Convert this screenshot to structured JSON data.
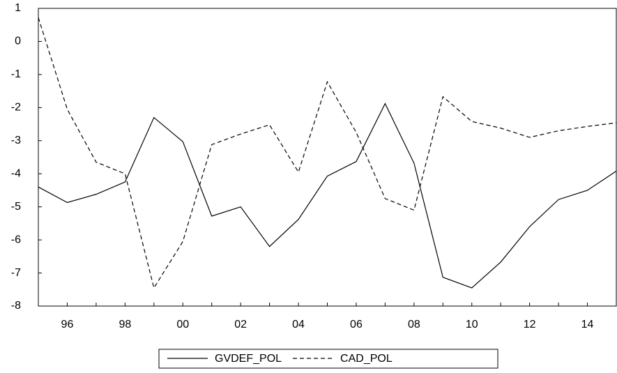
{
  "chart_data": {
    "type": "line",
    "categories": [
      null,
      "96",
      null,
      "98",
      null,
      "00",
      null,
      "02",
      null,
      "04",
      null,
      "06",
      null,
      "08",
      null,
      "10",
      null,
      "12",
      null,
      "14",
      null
    ],
    "series": [
      {
        "name": "GVDEF_POL",
        "color": "#000000",
        "style": "solid",
        "values": [
          -4.4,
          -4.87,
          -4.62,
          -4.25,
          -2.3,
          -3.03,
          -5.28,
          -5.0,
          -6.2,
          -5.38,
          -4.07,
          -3.63,
          -1.88,
          -3.68,
          -7.13,
          -7.45,
          -6.67,
          -5.6,
          -4.78,
          -4.5,
          -3.92
        ]
      },
      {
        "name": "CAD_POL",
        "color": "#000000",
        "style": "dashed",
        "values": [
          0.72,
          -2.05,
          -3.65,
          -4.0,
          -7.45,
          -6.05,
          -3.12,
          -2.8,
          -2.52,
          -3.95,
          -1.22,
          -2.75,
          -4.75,
          -5.1,
          -1.67,
          -2.42,
          -2.62,
          -2.9,
          -2.7,
          -2.57,
          -2.46
        ]
      }
    ],
    "ylim": [
      -8,
      1
    ],
    "yticks": [
      -8,
      -7,
      -6,
      -5,
      -4,
      -3,
      -2,
      -1,
      0,
      1
    ],
    "grid": false,
    "legend": "bottom"
  }
}
